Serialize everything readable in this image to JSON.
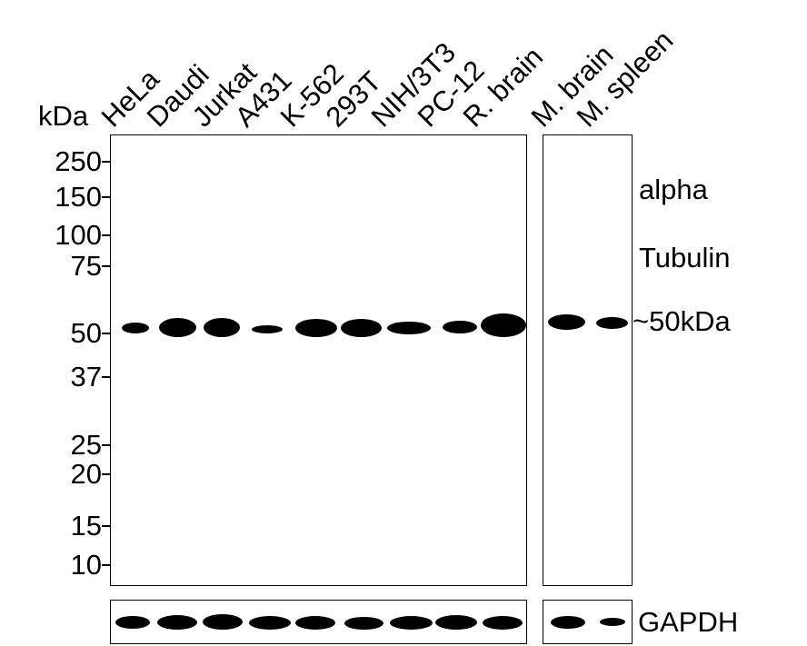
{
  "unit_label": "kDa",
  "lanes": [
    "HeLa",
    "Daudi",
    "Jurkat",
    "A431",
    "K-562",
    "293T",
    "NIH/3T3",
    "PC-12",
    "R. brain",
    "M. brain",
    "M. spleen"
  ],
  "markers": [
    "250",
    "150",
    "100",
    "75",
    "50",
    "37",
    "25",
    "20",
    "15",
    "10"
  ],
  "target_label_line1": "alpha",
  "target_label_line2": "Tubulin",
  "band_size_label": "~50kDa",
  "loading_control_label": "GAPDH"
}
